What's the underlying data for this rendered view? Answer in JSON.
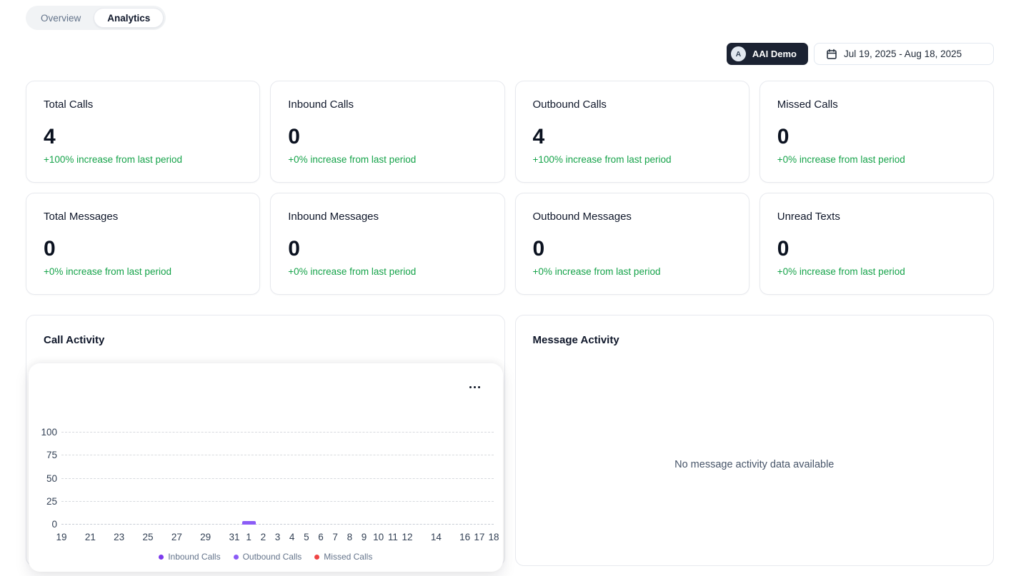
{
  "tabs": {
    "overview": "Overview",
    "analytics": "Analytics"
  },
  "header": {
    "account_button": {
      "avatar_initial": "A",
      "label": "AAI Demo"
    },
    "date_range": "Jul 19, 2025 - Aug 18, 2025"
  },
  "stats": [
    {
      "title": "Total Calls",
      "value": "4",
      "change": "+100% increase from last period"
    },
    {
      "title": "Inbound Calls",
      "value": "0",
      "change": "+0% increase from last period"
    },
    {
      "title": "Outbound Calls",
      "value": "4",
      "change": "+100% increase from last period"
    },
    {
      "title": "Missed Calls",
      "value": "0",
      "change": "+0% increase from last period"
    },
    {
      "title": "Total Messages",
      "value": "0",
      "change": "+0% increase from last period"
    },
    {
      "title": "Inbound Messages",
      "value": "0",
      "change": "+0% increase from last period"
    },
    {
      "title": "Outbound Messages",
      "value": "0",
      "change": "+0% increase from last period"
    },
    {
      "title": "Unread Texts",
      "value": "0",
      "change": "+0% increase from last period"
    }
  ],
  "call_activity": {
    "title": "Call Activity"
  },
  "message_activity": {
    "title": "Message Activity",
    "empty_text": "No message activity data available"
  },
  "colors": {
    "inbound": "#7c3aed",
    "outbound": "#8b5cf6",
    "missed": "#ef4444",
    "positive_change": "#16a34a",
    "account_button_bg": "#1b2232"
  },
  "chart_data": {
    "type": "bar",
    "title": "Call Activity",
    "xlabel": "",
    "ylabel": "",
    "ylim": [
      0,
      100
    ],
    "y_ticks": [
      0,
      25,
      50,
      75,
      100
    ],
    "grid": "dashed-horizontal",
    "legend_position": "bottom",
    "x_total_days": 30,
    "x_range": "Jul 19 - Aug 18",
    "x_ticks": [
      {
        "label": "19",
        "day_offset": 0
      },
      {
        "label": "21",
        "day_offset": 2
      },
      {
        "label": "23",
        "day_offset": 4
      },
      {
        "label": "25",
        "day_offset": 6
      },
      {
        "label": "27",
        "day_offset": 8
      },
      {
        "label": "29",
        "day_offset": 10
      },
      {
        "label": "31",
        "day_offset": 12
      },
      {
        "label": "1",
        "day_offset": 13
      },
      {
        "label": "2",
        "day_offset": 14
      },
      {
        "label": "3",
        "day_offset": 15
      },
      {
        "label": "4",
        "day_offset": 16
      },
      {
        "label": "5",
        "day_offset": 17
      },
      {
        "label": "6",
        "day_offset": 18
      },
      {
        "label": "7",
        "day_offset": 19
      },
      {
        "label": "8",
        "day_offset": 20
      },
      {
        "label": "9",
        "day_offset": 21
      },
      {
        "label": "10",
        "day_offset": 22
      },
      {
        "label": "11",
        "day_offset": 23
      },
      {
        "label": "12",
        "day_offset": 24
      },
      {
        "label": "14",
        "day_offset": 26
      },
      {
        "label": "16",
        "day_offset": 28
      },
      {
        "label": "17",
        "day_offset": 29
      },
      {
        "label": "18",
        "day_offset": 30
      }
    ],
    "series": [
      {
        "name": "Inbound Calls",
        "color": "#7c3aed",
        "points": []
      },
      {
        "name": "Outbound Calls",
        "color": "#8b5cf6",
        "points": [
          {
            "x_label": "1",
            "day_offset": 13,
            "value": 4
          }
        ]
      },
      {
        "name": "Missed Calls",
        "color": "#ef4444",
        "points": []
      }
    ]
  }
}
